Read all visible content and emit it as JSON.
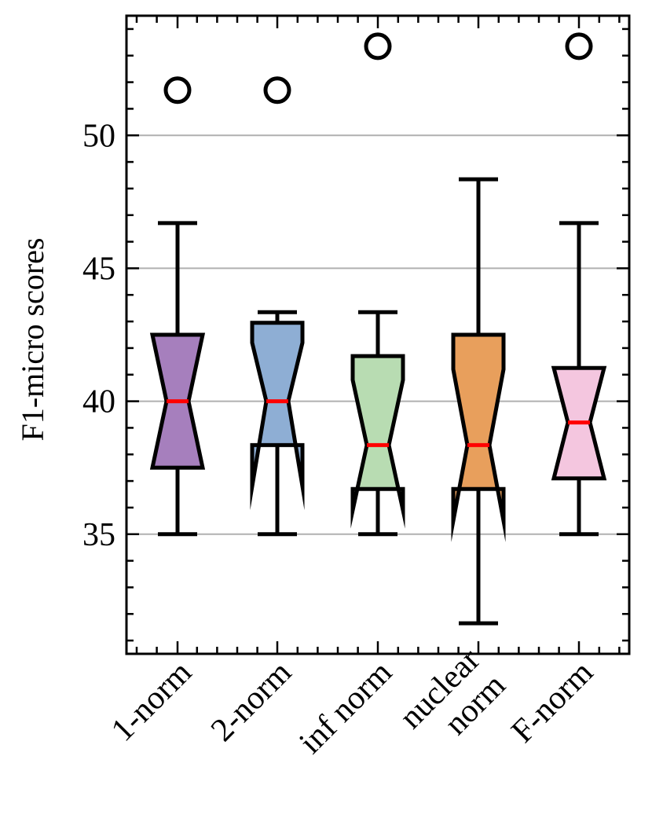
{
  "chart_data": {
    "type": "box",
    "notched": true,
    "title": "",
    "xlabel": "",
    "ylabel": "F1-micro scores",
    "ylim": [
      30.5,
      54.5
    ],
    "yticks": [
      35,
      40,
      45,
      50
    ],
    "grid": "horizontal at major y ticks",
    "categories": [
      "1-norm",
      "2-norm",
      "inf norm",
      "nuclear norm",
      "F-norm"
    ],
    "category_lines": [
      [
        "1-norm"
      ],
      [
        "2-norm"
      ],
      [
        "inf norm"
      ],
      [
        "nuclear",
        "norm"
      ],
      [
        "F-norm"
      ]
    ],
    "boxes": [
      {
        "name": "1-norm",
        "whisker_low": 35.0,
        "q1": 37.5,
        "median": 40.0,
        "q3": 42.5,
        "whisker_high": 46.7,
        "notch_low": 37.5,
        "notch_high": 42.5,
        "outliers": [
          51.7
        ],
        "color": "#a67fbd"
      },
      {
        "name": "2-norm",
        "whisker_low": 35.0,
        "q1": 38.35,
        "median": 40.0,
        "q3": 42.95,
        "whisker_high": 43.35,
        "notch_low": 36.8,
        "notch_high": 42.2,
        "outliers": [
          51.7
        ],
        "color": "#8eaed4"
      },
      {
        "name": "inf norm",
        "whisker_low": 35.0,
        "q1": 36.7,
        "median": 38.35,
        "q3": 41.7,
        "whisker_high": 43.35,
        "notch_low": 35.9,
        "notch_high": 40.8,
        "outliers": [
          53.35
        ],
        "color": "#b8dcb2"
      },
      {
        "name": "nuclear norm",
        "whisker_low": 31.65,
        "q1": 36.7,
        "median": 38.35,
        "q3": 42.5,
        "whisker_high": 48.35,
        "notch_low": 35.5,
        "notch_high": 41.2,
        "outliers": [],
        "color": "#e89f5c"
      },
      {
        "name": "F-norm",
        "whisker_low": 35.0,
        "q1": 37.1,
        "median": 39.2,
        "q3": 41.25,
        "whisker_high": 46.7,
        "notch_low": 37.1,
        "notch_high": 41.25,
        "outliers": [
          53.35
        ],
        "color": "#f4c6df"
      }
    ],
    "median_color": "#ff0000",
    "outlier_marker": "open circle"
  }
}
